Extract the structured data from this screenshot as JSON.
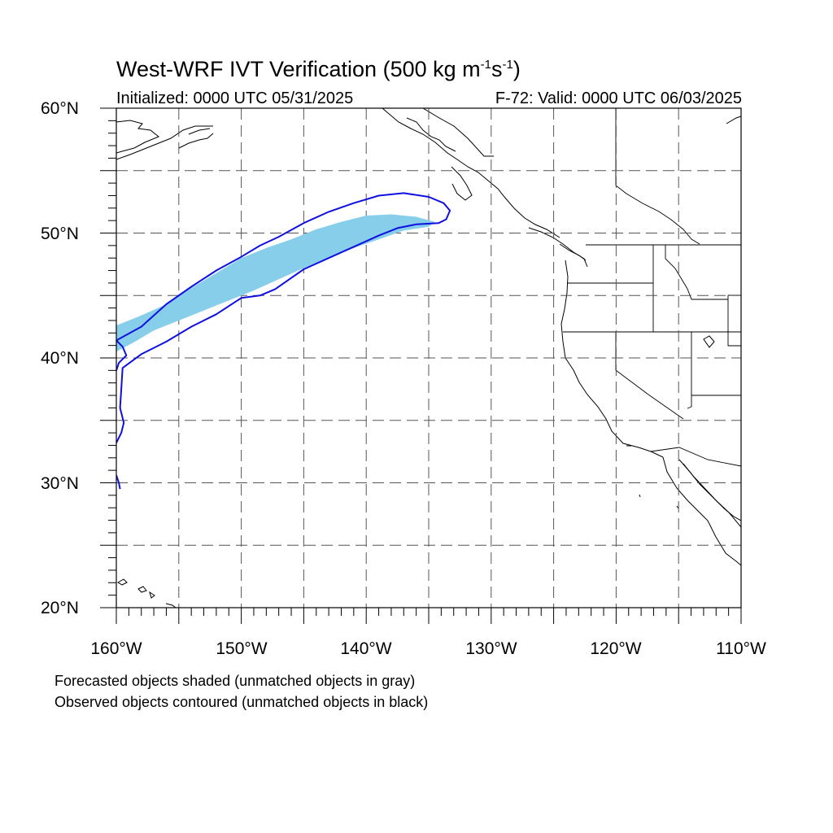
{
  "title": {
    "main": "West-WRF IVT Verification (500 kg m",
    "sup1": "-1",
    "mid": "s",
    "sup2": "-1",
    "end": ")"
  },
  "subtitle_left": "Initialized: 0000 UTC 05/31/2025",
  "subtitle_right": "F-72: Valid: 0000 UTC 06/03/2025",
  "lat_labels": [
    "60°N",
    "50°N",
    "40°N",
    "30°N",
    "20°N"
  ],
  "lon_labels": [
    "160°W",
    "150°W",
    "140°W",
    "130°W",
    "120°W",
    "110°W"
  ],
  "notes": [
    "Forecasted objects shaded (unmatched objects in gray)",
    "Observed objects contoured (unmatched objects in black)"
  ],
  "map": {
    "extent": {
      "lon_min": -160,
      "lon_max": -110,
      "lat_min": 20,
      "lat_max": 60
    },
    "grid_lon": [
      -155,
      -150,
      -145,
      -140,
      -135,
      -130,
      -125,
      -120,
      -115
    ],
    "grid_lat": [
      25,
      30,
      35,
      40,
      45,
      50,
      55
    ],
    "colors": {
      "forecast_fill": "#87ceeb",
      "observed_contour": "#1010e0",
      "coast": "#000000",
      "grid": "#555555"
    },
    "forecast_object": [
      [
        -160,
        42.6
      ],
      [
        -158,
        43.4
      ],
      [
        -156,
        44.3
      ],
      [
        -154,
        45.6
      ],
      [
        -152,
        46.8
      ],
      [
        -150,
        48.0
      ],
      [
        -148,
        48.8
      ],
      [
        -146,
        49.5
      ],
      [
        -144,
        50.3
      ],
      [
        -142,
        50.9
      ],
      [
        -140,
        51.4
      ],
      [
        -138,
        51.5
      ],
      [
        -136,
        51.3
      ],
      [
        -134.5,
        50.9
      ],
      [
        -135,
        50.5
      ],
      [
        -137,
        50.2
      ],
      [
        -139,
        49.5
      ],
      [
        -141,
        48.8
      ],
      [
        -143,
        48.0
      ],
      [
        -145,
        47.2
      ],
      [
        -147,
        46.3
      ],
      [
        -149,
        45.4
      ],
      [
        -151,
        44.6
      ],
      [
        -153,
        43.8
      ],
      [
        -155,
        43.0
      ],
      [
        -157,
        42.2
      ],
      [
        -158.5,
        41.3
      ],
      [
        -160,
        40.5
      ]
    ],
    "observed_contour_main": [
      [
        -160,
        41.4
      ],
      [
        -158,
        42.5
      ],
      [
        -156,
        44.3
      ],
      [
        -154,
        45.7
      ],
      [
        -152,
        47.0
      ],
      [
        -150,
        48.1
      ],
      [
        -148.5,
        49.0
      ],
      [
        -147,
        49.7
      ],
      [
        -145,
        50.8
      ],
      [
        -143,
        51.7
      ],
      [
        -141,
        52.4
      ],
      [
        -139,
        53.0
      ],
      [
        -137,
        53.2
      ],
      [
        -135,
        52.9
      ],
      [
        -133.8,
        52.4
      ],
      [
        -133.3,
        51.8
      ],
      [
        -133.6,
        51.1
      ],
      [
        -134.2,
        50.8
      ],
      [
        -136,
        50.7
      ],
      [
        -137.5,
        50.4
      ],
      [
        -139,
        49.8
      ],
      [
        -141,
        48.9
      ],
      [
        -143,
        48.0
      ],
      [
        -145,
        47.1
      ],
      [
        -147.3,
        45.5
      ],
      [
        -148.5,
        45.0
      ],
      [
        -150,
        44.8
      ],
      [
        -152,
        43.5
      ],
      [
        -154,
        42.5
      ],
      [
        -156,
        41.3
      ],
      [
        -158,
        40.3
      ],
      [
        -159.5,
        39.2
      ],
      [
        -159.6,
        37.5
      ],
      [
        -159.7,
        36.0
      ],
      [
        -159.4,
        34.8
      ],
      [
        -159.6,
        34.0
      ],
      [
        -160,
        33.2
      ]
    ],
    "observed_contour_edge": [
      [
        -160,
        41.4
      ],
      [
        -159.5,
        40.9
      ],
      [
        -159.2,
        40.2
      ],
      [
        -159.8,
        39.6
      ],
      [
        -160,
        39.0
      ]
    ],
    "observed_contour_small": [
      [
        -160,
        30.6
      ],
      [
        -159.8,
        30.0
      ],
      [
        -159.7,
        29.5
      ]
    ]
  }
}
